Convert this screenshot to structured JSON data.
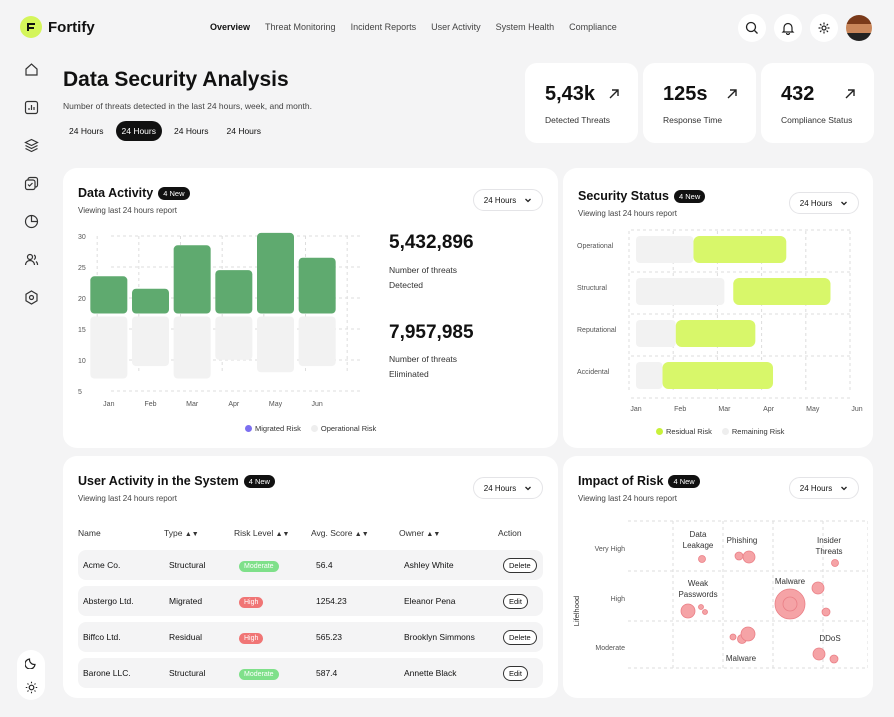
{
  "brand": {
    "name": "Fortify"
  },
  "nav": [
    "Overview",
    "Threat Monitoring",
    "Incident Reports",
    "User Activity",
    "System Health",
    "Compliance"
  ],
  "page": {
    "title": "Data Security Analysis",
    "subtitle": "Number of threats detected in the last 24 hours, week, and month.",
    "filters": [
      "24 Hours",
      "24 Hours",
      "24 Hours",
      "24 Hours"
    ]
  },
  "stats": [
    {
      "value": "5,43k",
      "label": "Detected Threats"
    },
    {
      "value": "125s",
      "label": "Response Time"
    },
    {
      "value": "432",
      "label": "Compliance Status"
    }
  ],
  "data_activity": {
    "title": "Data Activity",
    "badge": "4 New",
    "subtitle": "Viewing last 24 hours report",
    "dropdown": "24 Hours",
    "detected_value": "5,432,896",
    "detected_label_1": "Number of threats",
    "detected_label_2": "Detected",
    "eliminated_value": "7,957,985",
    "eliminated_label_1": "Number of threats",
    "eliminated_label_2": "Eliminated",
    "legend": [
      "Migrated Risk",
      "Operational Risk"
    ]
  },
  "security_status": {
    "title": "Security Status",
    "badge": "4 New",
    "subtitle": "Viewing last 24 hours report",
    "dropdown": "24 Hours",
    "legend": [
      "Residual Risk",
      "Remaining Risk"
    ]
  },
  "user_activity": {
    "title": "User Activity in the System",
    "badge": "4 New",
    "subtitle": "Viewing last 24 hours report",
    "dropdown": "24 Hours",
    "columns": [
      "Name",
      "Type",
      "Risk Level",
      "Avg. Score",
      "Owner",
      "Action"
    ],
    "rows": [
      {
        "name": "Acme Co.",
        "type": "Structural",
        "risk": "Moderate",
        "score": "56.4",
        "owner": "Ashley White",
        "action": "Delete"
      },
      {
        "name": "Abstergo Ltd.",
        "type": "Migrated",
        "risk": "High",
        "score": "1254.23",
        "owner": "Eleanor Pena",
        "action": "Edit"
      },
      {
        "name": "Biffco Ltd.",
        "type": "Residual",
        "risk": "High",
        "score": "565.23",
        "owner": "Brooklyn Simmons",
        "action": "Delete"
      },
      {
        "name": "Barone LLC.",
        "type": "Structural",
        "risk": "Moderate",
        "score": "587.4",
        "owner": "Annette Black",
        "action": "Edit"
      }
    ]
  },
  "impact_of_risk": {
    "title": "Impact of Risk",
    "badge": "4 New",
    "subtitle": "Viewing last 24 hours report",
    "dropdown": "24 Hours"
  },
  "colors": {
    "green": "#5faa6f",
    "lime": "#d8f76a",
    "gray": "#f2f2f2",
    "red": "#f07575",
    "moderate": "#7fe08a",
    "pink": "#f5a3a6"
  },
  "chart_data": [
    {
      "type": "bar",
      "title": "Data Activity",
      "categories": [
        "Jan",
        "Feb",
        "Mar",
        "Apr",
        "May",
        "Jun"
      ],
      "ylim": [
        5,
        30
      ],
      "yticks": [
        30,
        25,
        20,
        15,
        10,
        5
      ],
      "series": [
        {
          "name": "Migrated Risk",
          "values": [
            6,
            4,
            11,
            7,
            13,
            9
          ]
        },
        {
          "name": "Operational Risk",
          "values": [
            10,
            8,
            10,
            7,
            9,
            8
          ]
        }
      ]
    },
    {
      "type": "bar",
      "orientation": "horizontal",
      "title": "Security Status",
      "categories": [
        "Operational",
        "Structural",
        "Reputational",
        "Accidental"
      ],
      "xticks": [
        "Jan",
        "Feb",
        "Mar",
        "Apr",
        "May",
        "Jun"
      ],
      "series": [
        {
          "name": "Remaining Risk",
          "ranges": [
            [
              0,
              1.3
            ],
            [
              0,
              2.0
            ],
            [
              0,
              0.9
            ],
            [
              0,
              0.6
            ]
          ]
        },
        {
          "name": "Residual Risk",
          "ranges": [
            [
              1.3,
              3.4
            ],
            [
              2.2,
              4.4
            ],
            [
              0.9,
              2.7
            ],
            [
              0.6,
              3.1
            ]
          ]
        }
      ]
    },
    {
      "type": "scatter",
      "title": "Impact of Risk",
      "ylabel": "Lifelhood",
      "yticks": [
        "Very High",
        "High",
        "Moderate"
      ],
      "annotations": [
        "Data Leakage",
        "Phishing",
        "Insider Threats",
        "Weak Passwords",
        "Malware",
        "Malware",
        "DDoS"
      ]
    }
  ]
}
